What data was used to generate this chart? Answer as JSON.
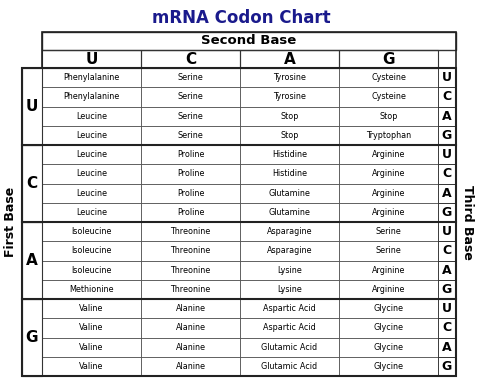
{
  "title": "mRNA Codon Chart",
  "title_color": "#1a1a8c",
  "second_base_label": "Second Base",
  "first_base_label": "First Base",
  "third_base_label": "Third Base",
  "second_base_letters": [
    "U",
    "C",
    "A",
    "G"
  ],
  "first_base_letters": [
    "U",
    "C",
    "A",
    "G"
  ],
  "third_base_letters": [
    "U",
    "C",
    "A",
    "G",
    "U",
    "C",
    "A",
    "G",
    "U",
    "C",
    "A",
    "G",
    "U",
    "C",
    "A",
    "G"
  ],
  "table": [
    [
      "Phenylalanine",
      "Serine",
      "Tyrosine",
      "Cysteine"
    ],
    [
      "Phenylalanine",
      "Serine",
      "Tyrosine",
      "Cysteine"
    ],
    [
      "Leucine",
      "Serine",
      "Stop",
      "Stop"
    ],
    [
      "Leucine",
      "Serine",
      "Stop",
      "Tryptophan"
    ],
    [
      "Leucine",
      "Proline",
      "Histidine",
      "Arginine"
    ],
    [
      "Leucine",
      "Proline",
      "Histidine",
      "Arginine"
    ],
    [
      "Leucine",
      "Proline",
      "Glutamine",
      "Arginine"
    ],
    [
      "Leucine",
      "Proline",
      "Glutamine",
      "Arginine"
    ],
    [
      "Isoleucine",
      "Threonine",
      "Asparagine",
      "Serine"
    ],
    [
      "Isoleucine",
      "Threonine",
      "Asparagine",
      "Serine"
    ],
    [
      "Isoleucine",
      "Threonine",
      "Lysine",
      "Arginine"
    ],
    [
      "Methionine",
      "Threonine",
      "Lysine",
      "Arginine"
    ],
    [
      "Valine",
      "Alanine",
      "Aspartic Acid",
      "Glycine"
    ],
    [
      "Valine",
      "Alanine",
      "Aspartic Acid",
      "Glycine"
    ],
    [
      "Valine",
      "Alanine",
      "Glutamic Acid",
      "Glycine"
    ],
    [
      "Valine",
      "Alanine",
      "Glutamic Acid",
      "Glycine"
    ]
  ],
  "bg_color": "#ffffff",
  "cell_fontsize": 5.8,
  "header_fontsize": 8.5,
  "title_fontsize": 12,
  "letter_fontsize": 9,
  "side_label_fontsize": 8
}
